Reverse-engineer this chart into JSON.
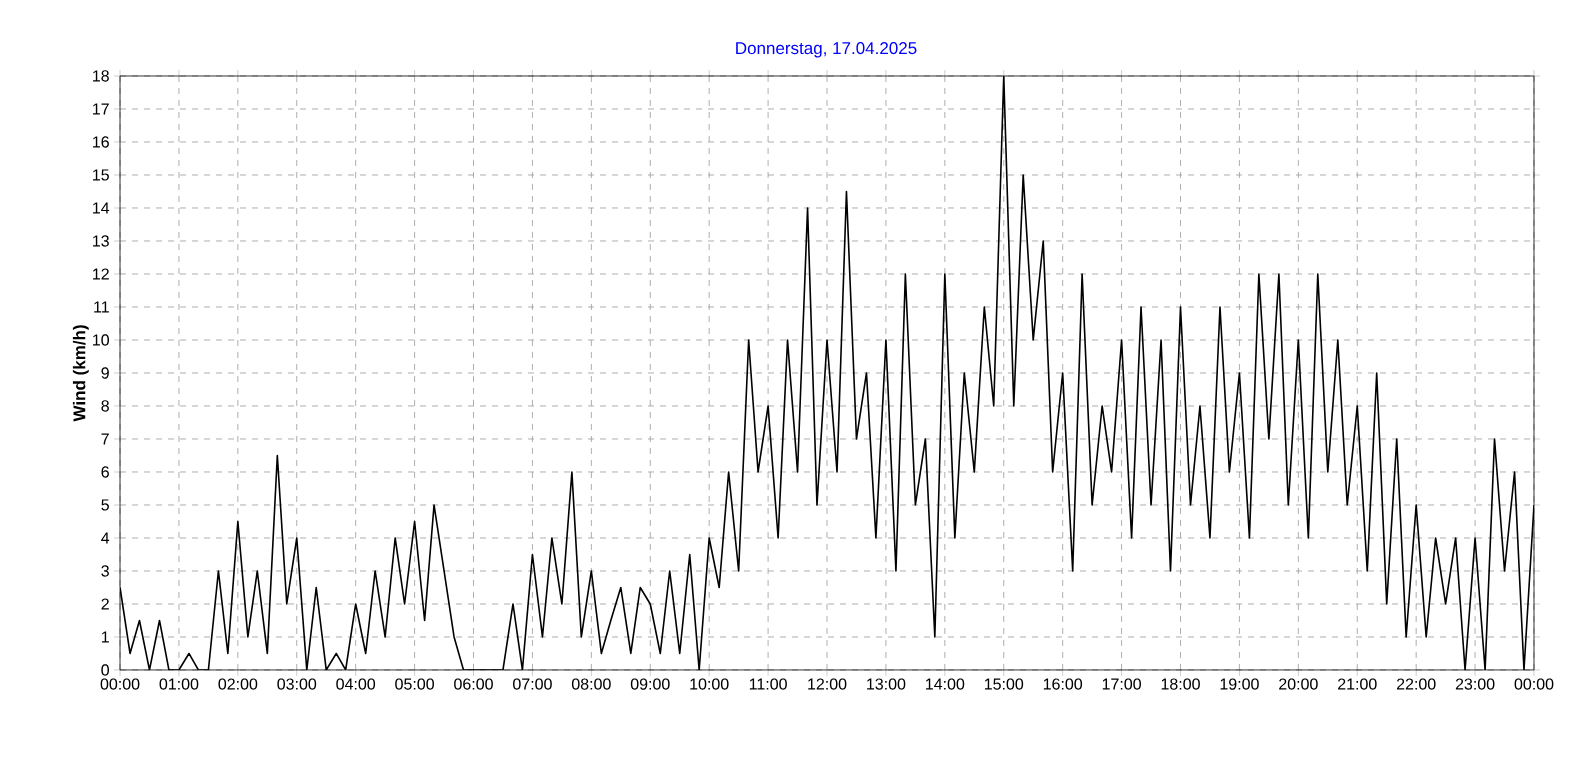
{
  "chart_data": {
    "type": "line",
    "title": "Donnerstag, 17.04.2025",
    "ylabel": "Wind  (km/h)",
    "x": [
      0,
      0.17,
      0.33,
      0.5,
      0.67,
      0.83,
      1,
      1.17,
      1.33,
      1.5,
      1.67,
      1.83,
      2,
      2.17,
      2.33,
      2.5,
      2.67,
      2.83,
      3,
      3.17,
      3.33,
      3.5,
      3.67,
      3.83,
      4,
      4.17,
      4.33,
      4.5,
      4.67,
      4.83,
      5,
      5.17,
      5.33,
      5.5,
      5.67,
      5.83,
      6,
      6.17,
      6.33,
      6.5,
      6.67,
      6.83,
      7,
      7.17,
      7.33,
      7.5,
      7.67,
      7.83,
      8,
      8.17,
      8.33,
      8.5,
      8.67,
      8.83,
      9,
      9.17,
      9.33,
      9.5,
      9.67,
      9.83,
      10,
      10.17,
      10.33,
      10.5,
      10.67,
      10.83,
      11,
      11.17,
      11.33,
      11.5,
      11.67,
      11.83,
      12,
      12.17,
      12.33,
      12.5,
      12.67,
      12.83,
      13,
      13.17,
      13.33,
      13.5,
      13.67,
      13.83,
      14,
      14.17,
      14.33,
      14.5,
      14.67,
      14.83,
      15,
      15.17,
      15.33,
      15.5,
      15.67,
      15.83,
      16,
      16.17,
      16.33,
      16.5,
      16.67,
      16.83,
      17,
      17.17,
      17.33,
      17.5,
      17.67,
      17.83,
      18,
      18.17,
      18.33,
      18.5,
      18.67,
      18.83,
      19,
      19.17,
      19.33,
      19.5,
      19.67,
      19.83,
      20,
      20.17,
      20.33,
      20.5,
      20.67,
      20.83,
      21,
      21.17,
      21.33,
      21.5,
      21.67,
      21.83,
      22,
      22.17,
      22.33,
      22.5,
      22.67,
      22.83,
      23,
      23.17,
      23.33,
      23.5,
      23.67,
      23.83,
      24
    ],
    "series": [
      {
        "color": "#000000",
        "values": [
          2.5,
          0.5,
          1.5,
          0,
          1.5,
          0,
          0,
          0.5,
          0,
          0,
          3,
          0.5,
          4.5,
          1,
          3,
          0.5,
          6.5,
          2,
          4,
          0,
          2.5,
          0,
          0.5,
          0,
          2,
          0.5,
          3,
          1,
          4,
          2,
          4.5,
          1.5,
          5,
          3,
          1,
          0,
          0,
          0,
          0,
          0,
          2,
          0,
          3.5,
          1,
          4,
          2,
          6,
          1,
          3,
          0.5,
          1.5,
          2.5,
          0.5,
          2.5,
          2,
          0.5,
          3,
          0.5,
          3.5,
          0,
          4,
          2.5,
          6,
          3,
          10,
          6,
          8,
          4,
          10,
          6,
          14,
          5,
          10,
          6,
          14.5,
          7,
          9,
          4,
          10,
          3,
          12,
          5,
          7,
          1,
          12,
          4,
          9,
          6,
          11,
          8,
          18,
          8,
          15,
          10,
          13,
          6,
          9,
          3,
          12,
          5,
          8,
          6,
          10,
          4,
          11,
          5,
          10,
          3,
          11,
          5,
          8,
          4,
          11,
          6,
          9,
          4,
          12,
          7,
          12,
          5,
          10,
          4,
          12,
          6,
          10,
          5,
          8,
          3,
          9,
          2,
          7,
          1,
          5,
          1,
          4,
          2,
          4,
          0,
          4,
          0,
          7,
          3,
          6,
          0,
          5
        ]
      }
    ],
    "xlim": [
      0,
      24
    ],
    "xticks": [
      {
        "value": 0,
        "label": "00:00"
      },
      {
        "value": 1,
        "label": "01:00"
      },
      {
        "value": 2,
        "label": "02:00"
      },
      {
        "value": 3,
        "label": "03:00"
      },
      {
        "value": 4,
        "label": "04:00"
      },
      {
        "value": 5,
        "label": "05:00"
      },
      {
        "value": 6,
        "label": "06:00"
      },
      {
        "value": 7,
        "label": "07:00"
      },
      {
        "value": 8,
        "label": "08:00"
      },
      {
        "value": 9,
        "label": "09:00"
      },
      {
        "value": 10,
        "label": "10:00"
      },
      {
        "value": 11,
        "label": "11:00"
      },
      {
        "value": 12,
        "label": "12:00"
      },
      {
        "value": 13,
        "label": "13:00"
      },
      {
        "value": 14,
        "label": "14:00"
      },
      {
        "value": 15,
        "label": "15:00"
      },
      {
        "value": 16,
        "label": "16:00"
      },
      {
        "value": 17,
        "label": "17:00"
      },
      {
        "value": 18,
        "label": "18:00"
      },
      {
        "value": 19,
        "label": "19:00"
      },
      {
        "value": 20,
        "label": "20:00"
      },
      {
        "value": 21,
        "label": "21:00"
      },
      {
        "value": 22,
        "label": "22:00"
      },
      {
        "value": 23,
        "label": "23:00"
      },
      {
        "value": 24,
        "label": "00:00"
      }
    ],
    "ylim": [
      0,
      18
    ],
    "yticks": [
      0,
      1,
      2,
      3,
      4,
      5,
      6,
      7,
      8,
      9,
      10,
      11,
      12,
      13,
      14,
      15,
      16,
      17,
      18
    ],
    "grid": true,
    "marker": "none",
    "line_style": "solid"
  }
}
